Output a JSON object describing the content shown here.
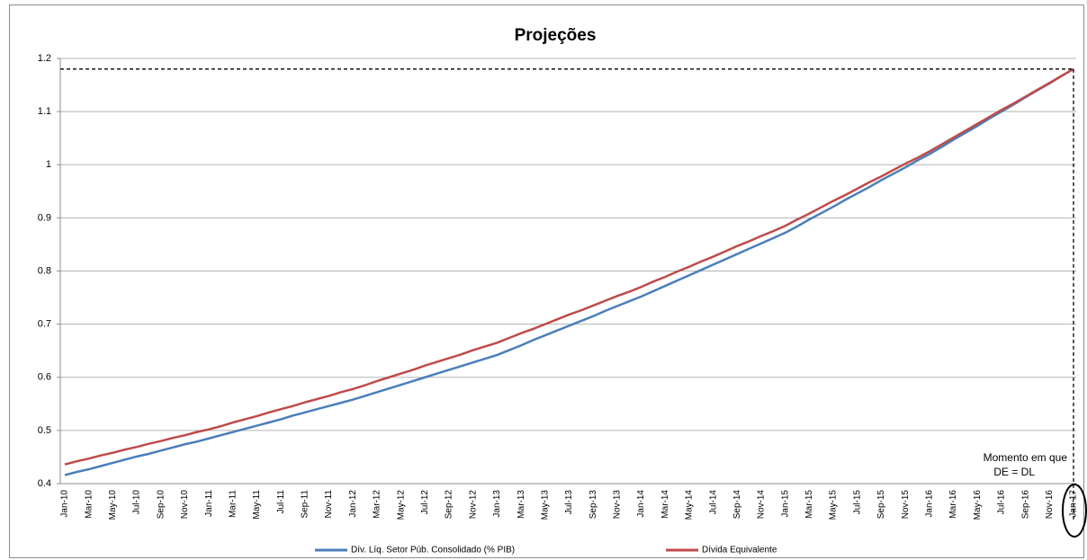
{
  "chart_data": {
    "type": "line",
    "title": "Projeções",
    "annotation": [
      "Momento em que",
      "DE = DL"
    ],
    "categories": [
      "Jan-10",
      null,
      "Mar-10",
      null,
      "May-10",
      null,
      "Jul-10",
      null,
      "Sep-10",
      null,
      "Nov-10",
      null,
      "Jan-11",
      null,
      "Mar-11",
      null,
      "May-11",
      null,
      "Jul-11",
      null,
      "Sep-11",
      null,
      "Nov-11",
      null,
      "Jan-12",
      null,
      "Mar-12",
      null,
      "May-12",
      null,
      "Jul-12",
      null,
      "Sep-12",
      null,
      "Nov-12",
      null,
      "Jan-13",
      null,
      "Mar-13",
      null,
      "May-13",
      null,
      "Jul-13",
      null,
      "Sep-13",
      null,
      "Nov-13",
      null,
      "Jan-14",
      null,
      "Mar-14",
      null,
      "May-14",
      null,
      "Jul-14",
      null,
      "Sep-14",
      null,
      "Nov-14",
      null,
      "Jan-15",
      null,
      "Mar-15",
      null,
      "May-15",
      null,
      "Jul-15",
      null,
      "Sep-15",
      null,
      "Nov-15",
      null,
      "Jan-16",
      null,
      "Mar-16",
      null,
      "May-16",
      null,
      "Jul-16",
      null,
      "Sep-16",
      null,
      "Nov-16",
      null,
      "Jan-17"
    ],
    "series": [
      {
        "name": "Dív. Líq. Setor Púb. Consolidado (% PIB)",
        "color": "#4a7ebb",
        "values": [
          0.416,
          0.422,
          0.427,
          0.433,
          0.439,
          0.445,
          0.451,
          0.456,
          0.462,
          0.468,
          0.474,
          0.479,
          0.485,
          0.491,
          0.497,
          0.503,
          0.509,
          0.515,
          0.521,
          0.528,
          0.534,
          0.54,
          0.546,
          0.552,
          0.558,
          0.565,
          0.572,
          0.579,
          0.586,
          0.593,
          0.6,
          0.607,
          0.614,
          0.621,
          0.628,
          0.635,
          0.642,
          0.651,
          0.66,
          0.67,
          0.679,
          0.688,
          0.697,
          0.706,
          0.715,
          0.725,
          0.734,
          0.743,
          0.752,
          0.762,
          0.772,
          0.782,
          0.792,
          0.802,
          0.812,
          0.822,
          0.832,
          0.842,
          0.852,
          0.862,
          0.872,
          0.884,
          0.897,
          0.909,
          0.921,
          0.934,
          0.946,
          0.958,
          0.971,
          0.983,
          0.995,
          1.008,
          1.02,
          1.033,
          1.047,
          1.06,
          1.073,
          1.087,
          1.1,
          1.113,
          1.127,
          1.14,
          1.153,
          1.167,
          1.18
        ]
      },
      {
        "name": "Dívida Equivalente",
        "color": "#be4b48",
        "values": [
          0.436,
          0.442,
          0.447,
          0.453,
          0.458,
          0.464,
          0.469,
          0.475,
          0.48,
          0.486,
          0.491,
          0.497,
          0.502,
          0.508,
          0.515,
          0.521,
          0.527,
          0.534,
          0.54,
          0.546,
          0.553,
          0.559,
          0.565,
          0.572,
          0.578,
          0.585,
          0.593,
          0.6,
          0.607,
          0.614,
          0.622,
          0.629,
          0.636,
          0.643,
          0.651,
          0.658,
          0.665,
          0.674,
          0.683,
          0.691,
          0.7,
          0.709,
          0.718,
          0.726,
          0.735,
          0.744,
          0.753,
          0.761,
          0.77,
          0.78,
          0.789,
          0.799,
          0.808,
          0.818,
          0.827,
          0.837,
          0.847,
          0.856,
          0.866,
          0.875,
          0.885,
          0.897,
          0.908,
          0.92,
          0.932,
          0.943,
          0.955,
          0.967,
          0.978,
          0.99,
          1.002,
          1.013,
          1.025,
          1.038,
          1.051,
          1.064,
          1.077,
          1.09,
          1.103,
          1.115,
          1.128,
          1.141,
          1.154,
          1.167,
          1.18
        ]
      }
    ],
    "ylim": [
      0.4,
      1.2
    ],
    "yticks": [
      0.4,
      0.5,
      0.6,
      0.7,
      0.8,
      0.9,
      1,
      1.1,
      1.2
    ],
    "grid": true
  }
}
